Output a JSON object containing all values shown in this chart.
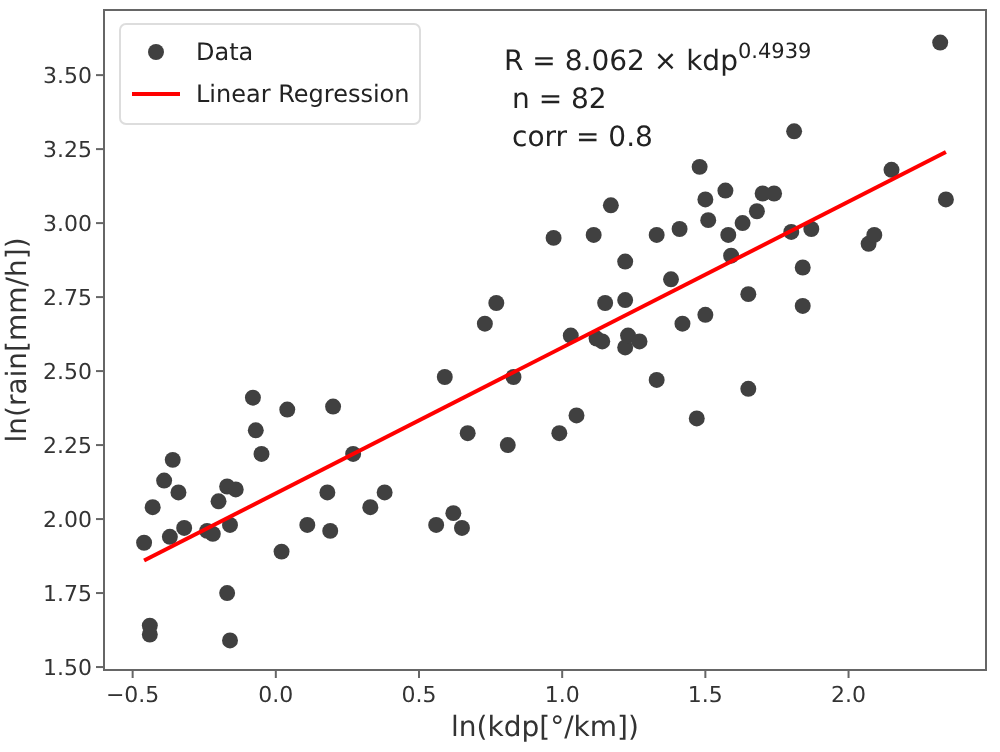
{
  "chart_data": {
    "type": "scatter",
    "xlabel": "ln(kdp[°/km])",
    "ylabel": "ln(rain[mm/h])",
    "annotations": [
      "R = 8.062 × kdp$^{0.4939}$",
      "n = 82",
      "corr = 0.8"
    ],
    "xlim": [
      -0.6,
      2.48
    ],
    "ylim": [
      1.49,
      3.72
    ],
    "xticks": [
      {
        "value": -0.5,
        "label": "−0.5"
      },
      {
        "value": 0,
        "label": "0.0"
      },
      {
        "value": 0.5,
        "label": "0.5"
      },
      {
        "value": 1,
        "label": "1.0"
      },
      {
        "value": 1.5,
        "label": "1.5"
      },
      {
        "value": 2,
        "label": "2.0"
      }
    ],
    "yticks": [
      {
        "value": 1.5,
        "label": "1.50"
      },
      {
        "value": 1.75,
        "label": "1.75"
      },
      {
        "value": 2,
        "label": "2.00"
      },
      {
        "value": 2.25,
        "label": "2.25"
      },
      {
        "value": 2.5,
        "label": "2.50"
      },
      {
        "value": 2.75,
        "label": "2.75"
      },
      {
        "value": 3,
        "label": "3.00"
      },
      {
        "value": 3.25,
        "label": "3.25"
      },
      {
        "value": 3.5,
        "label": "3.50"
      }
    ],
    "legend": "top left",
    "series": [
      {
        "name": "Data",
        "marker": "circle",
        "color": "#404040",
        "x": [
          -0.46,
          -0.44,
          -0.44,
          -0.43,
          -0.39,
          -0.36,
          -0.34,
          -0.37,
          -0.32,
          -0.24,
          -0.22,
          -0.2,
          -0.17,
          -0.14,
          -0.16,
          -0.17,
          -0.16,
          -0.08,
          -0.07,
          -0.05,
          0.02,
          0.04,
          0.11,
          0.18,
          0.2,
          0.19,
          0.27,
          0.33,
          0.38,
          0.56,
          0.59,
          0.62,
          0.65,
          0.67,
          0.73,
          0.77,
          0.81,
          0.83,
          0.97,
          0.99,
          1.05,
          1.03,
          1.11,
          1.12,
          1.14,
          1.15,
          1.17,
          1.22,
          1.22,
          1.22,
          1.23,
          1.27,
          1.33,
          1.33,
          1.38,
          1.41,
          1.42,
          1.47,
          1.48,
          1.5,
          1.51,
          1.5,
          1.57,
          1.58,
          1.59,
          1.63,
          1.65,
          1.65,
          1.68,
          1.7,
          1.74,
          1.81,
          1.8,
          1.87,
          1.84,
          1.84,
          2.07,
          2.09,
          2.15,
          2.32,
          2.34
        ],
        "values": [
          1.92,
          1.64,
          1.61,
          2.04,
          2.13,
          2.2,
          2.09,
          1.94,
          1.97,
          1.96,
          1.95,
          2.06,
          2.11,
          2.1,
          1.98,
          1.75,
          1.59,
          2.41,
          2.3,
          2.22,
          1.89,
          2.37,
          1.98,
          2.09,
          2.38,
          1.96,
          2.22,
          2.04,
          2.09,
          1.98,
          2.48,
          2.02,
          1.97,
          2.29,
          2.66,
          2.73,
          2.25,
          2.48,
          2.95,
          2.29,
          2.35,
          2.62,
          2.96,
          2.61,
          2.6,
          2.73,
          3.06,
          2.74,
          2.87,
          2.58,
          2.62,
          2.6,
          2.47,
          2.96,
          2.81,
          2.98,
          2.66,
          2.34,
          3.19,
          3.08,
          3.01,
          2.69,
          3.11,
          2.96,
          2.89,
          3.0,
          2.76,
          2.44,
          3.04,
          3.1,
          3.1,
          3.31,
          2.97,
          2.98,
          2.85,
          2.72,
          2.93,
          2.96,
          3.18,
          3.61,
          3.08
        ]
      },
      {
        "name": "Linear Regression",
        "type": "line",
        "color": "#ff0000",
        "x": [
          -0.46,
          2.34
        ],
        "values": [
          1.86,
          3.24
        ]
      }
    ]
  }
}
